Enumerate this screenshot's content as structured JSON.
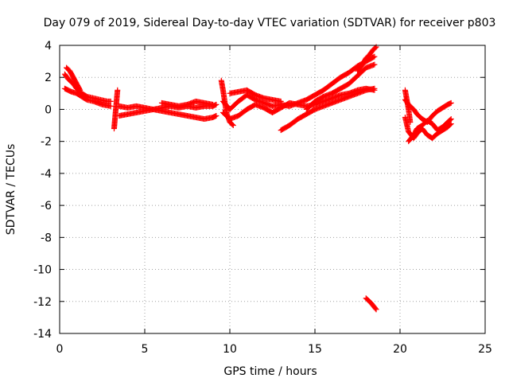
{
  "chart_data": {
    "type": "scatter",
    "title": "Day 079 of 2019, Sidereal Day-to-day VTEC variation (SDTVAR) for receiver p803",
    "xlabel": "GPS time / hours",
    "ylabel": "SDTVAR / TECUs",
    "xlim": [
      0,
      25
    ],
    "ylim": [
      -14,
      4
    ],
    "xticks": [
      0,
      5,
      10,
      15,
      20,
      25
    ],
    "yticks": [
      4,
      2,
      0,
      -2,
      -4,
      -6,
      -8,
      -10,
      -12,
      -14
    ],
    "grid": true,
    "marker": "+",
    "series": [
      {
        "name": "SDTVAR",
        "color": "#ff0000",
        "segments": [
          {
            "x": [
              0.3,
              0.5,
              0.8,
              1.0,
              1.3,
              1.6,
              2.0,
              2.4,
              2.8,
              3.0
            ],
            "y": [
              2.2,
              1.9,
              1.6,
              1.3,
              1.0,
              0.8,
              0.7,
              0.6,
              0.5,
              0.5
            ]
          },
          {
            "x": [
              0.3,
              0.5,
              0.7,
              1.0,
              1.3,
              1.6,
              2.0,
              2.5,
              3.0
            ],
            "y": [
              1.3,
              1.2,
              1.1,
              1.0,
              0.8,
              0.6,
              0.5,
              0.3,
              0.2
            ]
          },
          {
            "x": [
              0.4,
              0.6,
              0.8,
              1.0,
              1.2
            ],
            "y": [
              2.6,
              2.4,
              2.0,
              1.6,
              1.2
            ]
          },
          {
            "x": [
              3.2,
              3.25,
              3.3,
              3.35,
              3.4
            ],
            "y": [
              -1.2,
              -0.6,
              0.0,
              0.6,
              1.2
            ]
          },
          {
            "x": [
              3.5,
              4.0,
              4.5,
              5.0,
              5.5,
              6.0,
              6.5,
              7.0,
              7.5,
              8.0,
              8.5,
              9.0,
              9.2
            ],
            "y": [
              0.2,
              0.1,
              0.2,
              0.1,
              0.0,
              0.1,
              0.2,
              0.1,
              0.2,
              0.1,
              0.2,
              0.2,
              0.3
            ]
          },
          {
            "x": [
              3.5,
              4.0,
              4.5,
              5.0,
              5.5,
              6.0,
              6.5,
              7.0,
              7.5,
              8.0,
              8.5,
              9.0,
              9.2
            ],
            "y": [
              -0.4,
              -0.3,
              -0.2,
              -0.1,
              0.0,
              -0.1,
              -0.2,
              -0.3,
              -0.4,
              -0.5,
              -0.6,
              -0.5,
              -0.4
            ]
          },
          {
            "x": [
              6.0,
              6.5,
              7.0,
              7.5,
              8.0,
              8.5,
              9.0
            ],
            "y": [
              0.4,
              0.3,
              0.2,
              0.3,
              0.5,
              0.4,
              0.3
            ]
          },
          {
            "x": [
              9.5,
              9.6,
              9.7,
              9.8,
              10.0,
              10.2
            ],
            "y": [
              1.8,
              1.2,
              0.5,
              -0.2,
              -0.8,
              -1.0
            ]
          },
          {
            "x": [
              9.6,
              10.0,
              10.5,
              11.0,
              11.5,
              12.0,
              12.5,
              13.0,
              13.5,
              14.0,
              14.5,
              15.0,
              15.5,
              16.0,
              16.5,
              17.0,
              17.5,
              18.0,
              18.5
            ],
            "y": [
              0.5,
              0.0,
              0.5,
              0.9,
              0.6,
              0.4,
              0.2,
              0.3,
              0.2,
              0.4,
              0.6,
              0.9,
              1.2,
              1.6,
              2.0,
              2.3,
              2.7,
              3.0,
              3.3
            ]
          },
          {
            "x": [
              9.6,
              10.0,
              10.5,
              11.0,
              11.5,
              12.0,
              12.5,
              13.0,
              13.5,
              14.0,
              14.5,
              15.0,
              15.5,
              16.0,
              16.5,
              17.0,
              17.5,
              18.0,
              18.5
            ],
            "y": [
              -0.2,
              -0.6,
              -0.4,
              0.0,
              0.3,
              0.1,
              -0.2,
              0.1,
              0.4,
              0.3,
              0.2,
              0.3,
              0.5,
              0.7,
              0.9,
              1.0,
              1.2,
              1.3,
              1.2
            ]
          },
          {
            "x": [
              10.0,
              10.5,
              11.0,
              11.5,
              12.0,
              12.5,
              13.0
            ],
            "y": [
              1.0,
              1.1,
              1.2,
              0.9,
              0.7,
              0.6,
              0.5
            ]
          },
          {
            "x": [
              13.0,
              13.5,
              14.0,
              14.5,
              15.0,
              15.5,
              16.0,
              16.5,
              17.0,
              17.5,
              18.0,
              18.5
            ],
            "y": [
              -1.3,
              -1.0,
              -0.6,
              -0.3,
              0.0,
              0.2,
              0.4,
              0.6,
              0.8,
              1.0,
              1.2,
              1.3
            ]
          },
          {
            "x": [
              14.5,
              15.0,
              15.5,
              16.0,
              16.5,
              17.0,
              17.5,
              18.0,
              18.5
            ],
            "y": [
              0.0,
              0.5,
              0.8,
              1.0,
              1.3,
              1.6,
              2.1,
              2.6,
              2.8
            ]
          },
          {
            "x": [
              17.5,
              17.8,
              18.0,
              18.2,
              18.4,
              18.6
            ],
            "y": [
              2.4,
              2.8,
              3.2,
              3.4,
              3.7,
              3.9
            ]
          },
          {
            "x": [
              18.0,
              18.15,
              18.3,
              18.45,
              18.6
            ],
            "y": [
              -11.8,
              -11.95,
              -12.1,
              -12.3,
              -12.5
            ]
          },
          {
            "x": [
              20.3,
              20.4,
              20.5,
              20.6
            ],
            "y": [
              1.2,
              0.6,
              0.0,
              -0.8
            ]
          },
          {
            "x": [
              20.3,
              20.5,
              20.8,
              21.0,
              21.3,
              21.6,
              21.9,
              22.2,
              22.5,
              22.8,
              23.0
            ],
            "y": [
              0.6,
              0.3,
              0.0,
              -0.3,
              -0.6,
              -0.8,
              -0.4,
              -0.1,
              0.1,
              0.3,
              0.4
            ]
          },
          {
            "x": [
              20.3,
              20.5,
              20.8,
              21.0,
              21.3,
              21.6,
              21.9,
              22.2,
              22.5,
              22.8,
              23.0
            ],
            "y": [
              -0.5,
              -1.4,
              -1.8,
              -1.5,
              -1.2,
              -1.6,
              -1.8,
              -1.5,
              -1.3,
              -1.1,
              -0.9
            ]
          },
          {
            "x": [
              20.5,
              20.8,
              21.0,
              21.3,
              21.6,
              21.9,
              22.2,
              22.5,
              22.8,
              23.0
            ],
            "y": [
              -2.0,
              -1.6,
              -1.2,
              -1.0,
              -0.7,
              -0.9,
              -1.3,
              -1.1,
              -0.8,
              -0.6
            ]
          }
        ]
      }
    ]
  }
}
